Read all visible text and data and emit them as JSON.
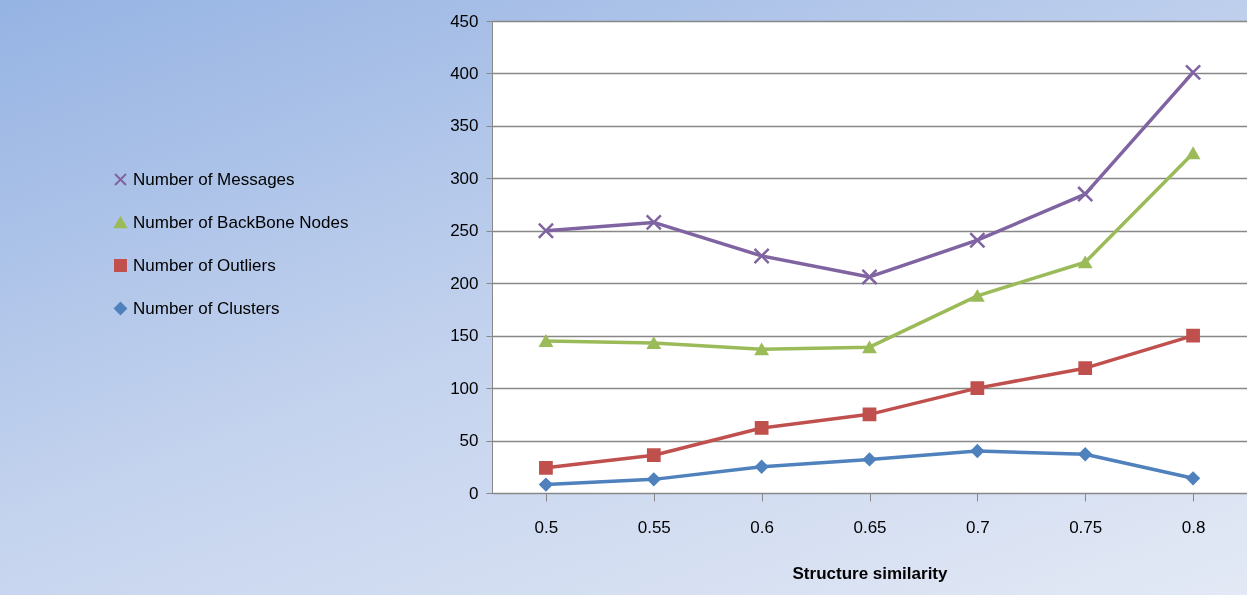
{
  "chart_data": {
    "type": "line",
    "xlabel": "Structure similarity",
    "categories": [
      "0.5",
      "0.55",
      "0.6",
      "0.65",
      "0.7",
      "0.75",
      "0.8"
    ],
    "series": [
      {
        "name": "Number of Messages",
        "color": "#8064a2",
        "marker": "cross",
        "values": [
          250,
          258,
          226,
          206,
          241,
          285,
          401
        ]
      },
      {
        "name": "Number of BackBone Nodes",
        "color": "#9bbb59",
        "marker": "triangle",
        "values": [
          145,
          143,
          137,
          139,
          188,
          220,
          324
        ]
      },
      {
        "name": "Number of Outliers",
        "color": "#c0504d",
        "marker": "square",
        "values": [
          24,
          36,
          62,
          75,
          100,
          119,
          150
        ]
      },
      {
        "name": "Number of Clusters",
        "color": "#4f81bd",
        "marker": "diamond",
        "values": [
          8,
          13,
          25,
          32,
          40,
          37,
          14
        ]
      }
    ],
    "ylim": [
      0,
      450
    ],
    "yticks": [
      0,
      50,
      100,
      150,
      200,
      250,
      300,
      350,
      400,
      450
    ],
    "grid": "y",
    "legend": "left"
  }
}
